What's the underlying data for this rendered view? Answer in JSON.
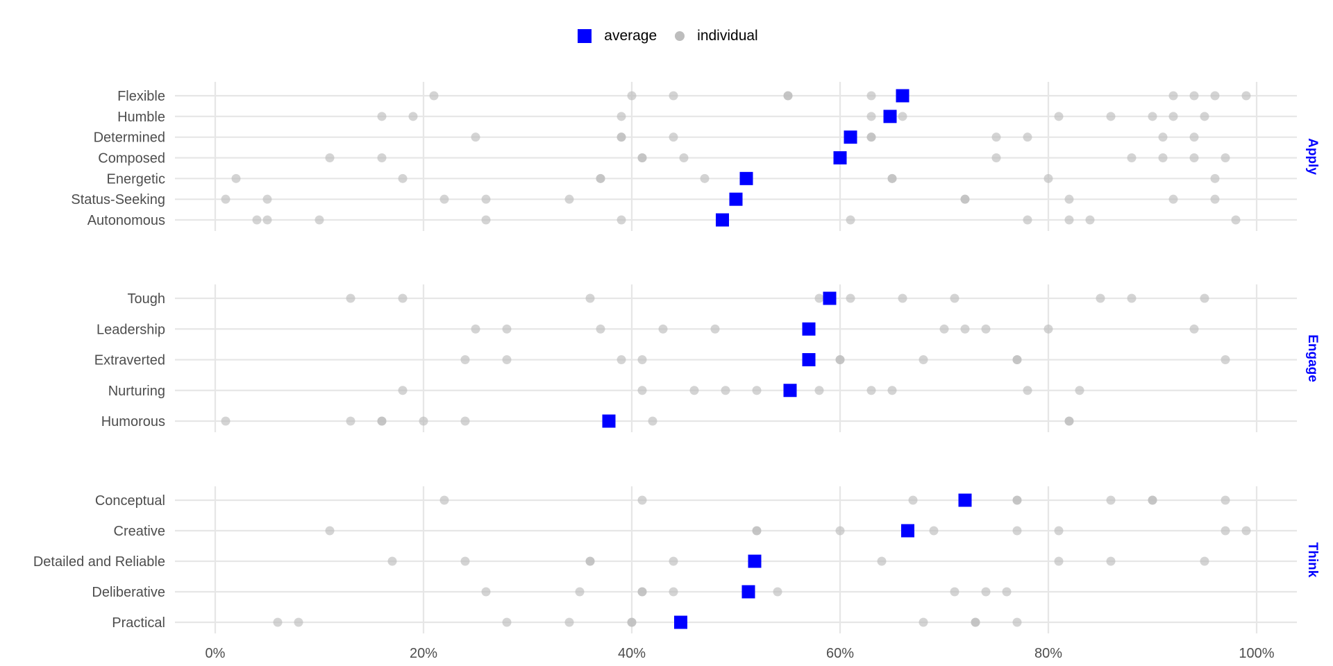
{
  "colors": {
    "average": "#0000ff",
    "individual": "#bdbdbd",
    "grid": "#e6e6e6",
    "strip_text": "#0000ff"
  },
  "legend": {
    "average_label": "average",
    "individual_label": "individual",
    "position": "top-center"
  },
  "chart_data": {
    "type": "scatter",
    "title": "",
    "xlabel": "",
    "ylabel": "",
    "xlim": [
      -0.04,
      1.04
    ],
    "x_ticks": [
      0,
      0.2,
      0.4,
      0.6,
      0.8,
      1.0
    ],
    "x_tick_labels": [
      "0%",
      "20%",
      "40%",
      "60%",
      "80%",
      "100%"
    ],
    "grid": true,
    "series": [
      {
        "name": "average",
        "marker": "square"
      },
      {
        "name": "individual",
        "marker": "circle"
      }
    ],
    "facets": [
      {
        "name": "Apply",
        "rows": [
          {
            "label": "Flexible",
            "average": 0.66,
            "individual": [
              0.21,
              0.4,
              0.44,
              0.55,
              0.55,
              0.63,
              0.92,
              0.94,
              0.96,
              0.99
            ]
          },
          {
            "label": "Humble",
            "average": 0.648,
            "individual": [
              0.16,
              0.19,
              0.39,
              0.63,
              0.66,
              0.81,
              0.86,
              0.9,
              0.92,
              0.95
            ]
          },
          {
            "label": "Determined",
            "average": 0.61,
            "individual": [
              0.25,
              0.39,
              0.39,
              0.44,
              0.63,
              0.63,
              0.75,
              0.78,
              0.91,
              0.94
            ]
          },
          {
            "label": "Composed",
            "average": 0.6,
            "individual": [
              0.11,
              0.16,
              0.41,
              0.41,
              0.45,
              0.75,
              0.88,
              0.91,
              0.94,
              0.97
            ]
          },
          {
            "label": "Energetic",
            "average": 0.51,
            "individual": [
              0.02,
              0.18,
              0.37,
              0.37,
              0.47,
              0.65,
              0.65,
              0.8,
              0.96
            ]
          },
          {
            "label": "Status-Seeking",
            "average": 0.5,
            "individual": [
              0.01,
              0.05,
              0.22,
              0.26,
              0.34,
              0.72,
              0.72,
              0.82,
              0.92,
              0.96
            ]
          },
          {
            "label": "Autonomous",
            "average": 0.487,
            "individual": [
              0.04,
              0.05,
              0.1,
              0.26,
              0.39,
              0.61,
              0.78,
              0.82,
              0.84,
              0.98
            ]
          }
        ]
      },
      {
        "name": "Engage",
        "rows": [
          {
            "label": "Tough",
            "average": 0.59,
            "individual": [
              0.13,
              0.18,
              0.36,
              0.58,
              0.61,
              0.66,
              0.71,
              0.85,
              0.88,
              0.95
            ]
          },
          {
            "label": "Leadership",
            "average": 0.57,
            "individual": [
              0.25,
              0.28,
              0.37,
              0.43,
              0.48,
              0.7,
              0.72,
              0.74,
              0.8,
              0.94
            ]
          },
          {
            "label": "Extraverted",
            "average": 0.57,
            "individual": [
              0.24,
              0.28,
              0.39,
              0.41,
              0.6,
              0.6,
              0.68,
              0.77,
              0.77,
              0.97
            ]
          },
          {
            "label": "Nurturing",
            "average": 0.552,
            "individual": [
              0.18,
              0.41,
              0.46,
              0.49,
              0.52,
              0.58,
              0.63,
              0.65,
              0.78,
              0.83
            ]
          },
          {
            "label": "Humorous",
            "average": 0.378,
            "individual": [
              0.01,
              0.13,
              0.16,
              0.16,
              0.2,
              0.24,
              0.42,
              0.82,
              0.82
            ]
          }
        ]
      },
      {
        "name": "Think",
        "rows": [
          {
            "label": "Conceptual",
            "average": 0.72,
            "individual": [
              0.22,
              0.41,
              0.67,
              0.77,
              0.77,
              0.86,
              0.9,
              0.9,
              0.97
            ]
          },
          {
            "label": "Creative",
            "average": 0.665,
            "individual": [
              0.11,
              0.52,
              0.52,
              0.6,
              0.69,
              0.77,
              0.81,
              0.97,
              0.99
            ]
          },
          {
            "label": "Detailed and Reliable",
            "average": 0.518,
            "individual": [
              0.17,
              0.24,
              0.36,
              0.36,
              0.44,
              0.64,
              0.81,
              0.86,
              0.95
            ]
          },
          {
            "label": "Deliberative",
            "average": 0.512,
            "individual": [
              0.26,
              0.35,
              0.41,
              0.41,
              0.44,
              0.54,
              0.71,
              0.74,
              0.76
            ]
          },
          {
            "label": "Practical",
            "average": 0.447,
            "individual": [
              0.06,
              0.08,
              0.28,
              0.34,
              0.4,
              0.4,
              0.68,
              0.73,
              0.73,
              0.77
            ]
          }
        ]
      }
    ]
  }
}
